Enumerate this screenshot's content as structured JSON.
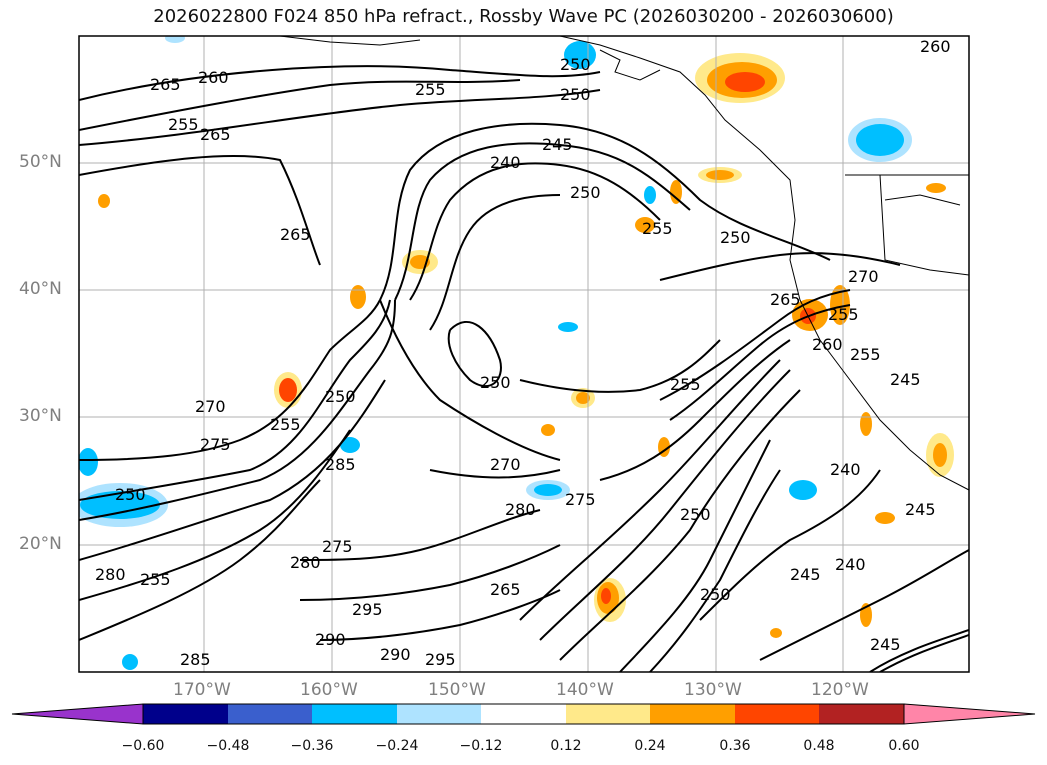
{
  "title": "2026022800 F024 850 hPa refract., Rossby Wave PC (2026030200 - 2026030600)",
  "latitudes": [
    {
      "label": "50°N",
      "value": 50
    },
    {
      "label": "40°N",
      "value": 40
    },
    {
      "label": "30°N",
      "value": 30
    },
    {
      "label": "20°N",
      "value": 20
    }
  ],
  "longitudes": [
    {
      "label": "170°W",
      "value": -170
    },
    {
      "label": "160°W",
      "value": -160
    },
    {
      "label": "150°W",
      "value": -150
    },
    {
      "label": "140°W",
      "value": -140
    },
    {
      "label": "130°W",
      "value": -130
    },
    {
      "label": "120°W",
      "value": -120
    }
  ],
  "colorbar": {
    "ticks": [
      "−0.60",
      "−0.48",
      "−0.36",
      "−0.24",
      "−0.12",
      "0.12",
      "0.24",
      "0.36",
      "0.48",
      "0.60"
    ],
    "colors": [
      "#9933cc",
      "#00008b",
      "#3a5fcd",
      "#00bfff",
      "#aee3ff",
      "#ffffff",
      "#ffe98a",
      "#ff9f00",
      "#ff4500",
      "#b22222",
      "#ff85a8"
    ]
  },
  "contour_labels": [
    "265",
    "260",
    "255",
    "255",
    "265",
    "250",
    "260",
    "265",
    "245",
    "240",
    "250",
    "255",
    "250",
    "270",
    "265",
    "260",
    "255",
    "250",
    "270",
    "275",
    "250",
    "255",
    "270",
    "280",
    "275",
    "285",
    "280",
    "275",
    "295",
    "290",
    "295",
    "290",
    "280",
    "285",
    "255",
    "265",
    "250",
    "240",
    "245",
    "245",
    "250",
    "245",
    "240",
    "255",
    "250",
    "245",
    "250",
    "255"
  ],
  "fill_colors": {
    "neg_light": "#aee3ff",
    "neg": "#00bfff",
    "pos_light": "#ffe98a",
    "pos": "#ff9f00",
    "pos_strong": "#ff4500"
  }
}
